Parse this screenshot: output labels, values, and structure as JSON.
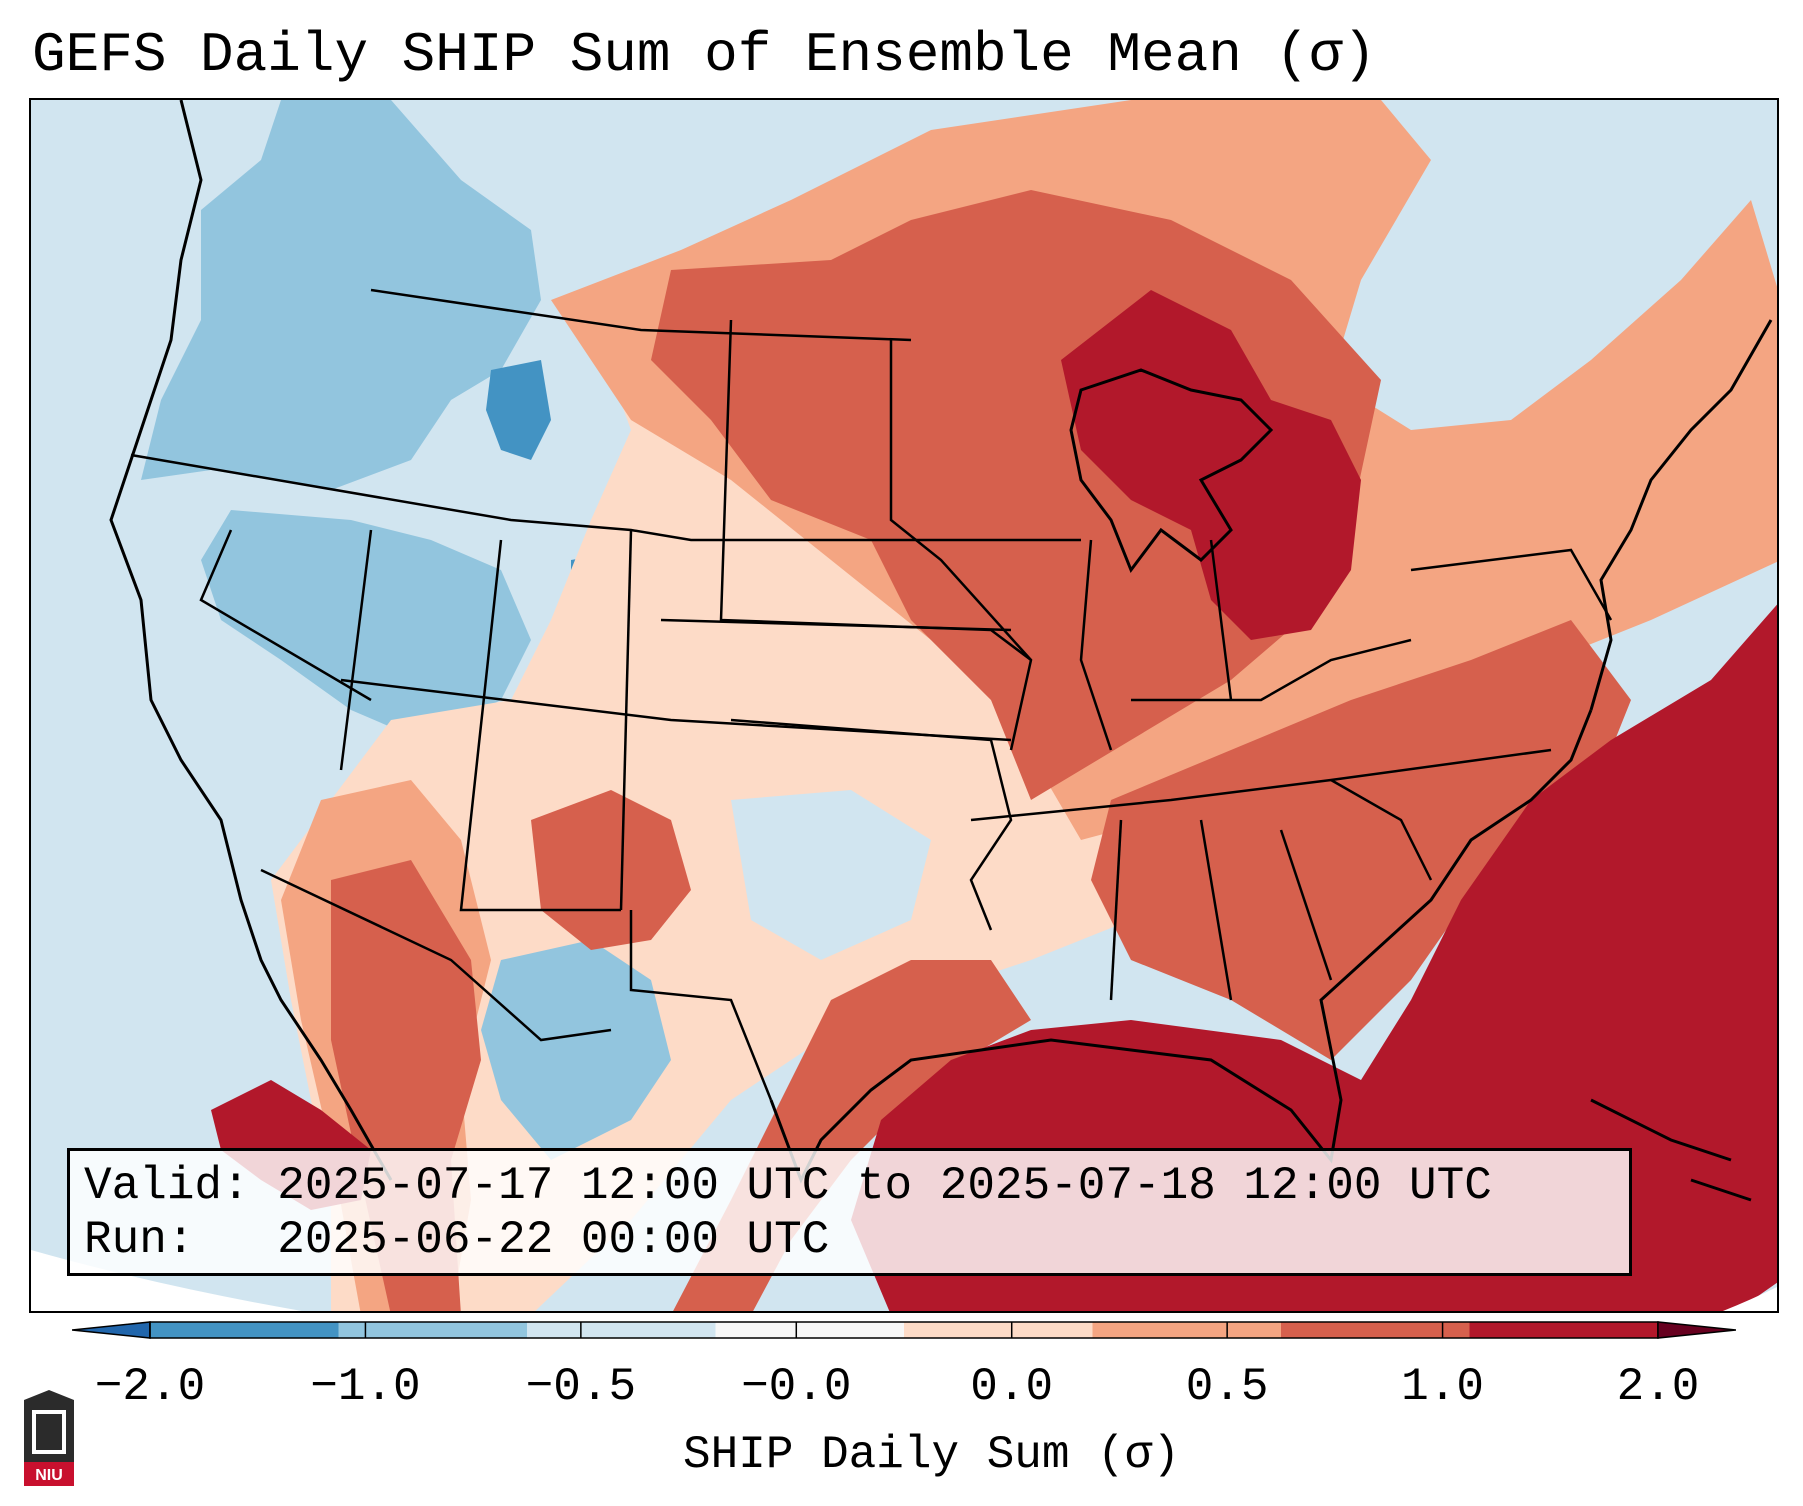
{
  "title": "GEFS Daily SHIP Sum of Ensemble Mean (σ)",
  "info": {
    "valid_label": "Valid:",
    "valid_value": "2025-07-17 12:00 UTC to 2025-07-18 12:00 UTC",
    "run_label": "Run:",
    "run_value": "2025-06-22 00:00 UTC"
  },
  "colorbar": {
    "label": "SHIP Daily Sum (σ)",
    "ticks": [
      "−2.0",
      "−1.0",
      "−0.5",
      "−0.0",
      "0.0",
      "0.5",
      "1.0",
      "2.0"
    ],
    "colors": [
      "#4393c3",
      "#92c5de",
      "#d1e5f0",
      "#f7f7f7",
      "#fddbc7",
      "#f4a582",
      "#d6604d",
      "#b2182b"
    ],
    "extend": "both"
  },
  "logo": {
    "text": "NIU",
    "name": "Northern Illinois University"
  },
  "legend_colors": {
    "strong_negative": "#4393c3",
    "negative": "#92c5de",
    "weak_negative": "#d1e5f0",
    "weak_positive": "#fddbc7",
    "positive": "#f4a582",
    "strong_positive": "#d6604d",
    "very_strong_positive": "#b2182b"
  }
}
